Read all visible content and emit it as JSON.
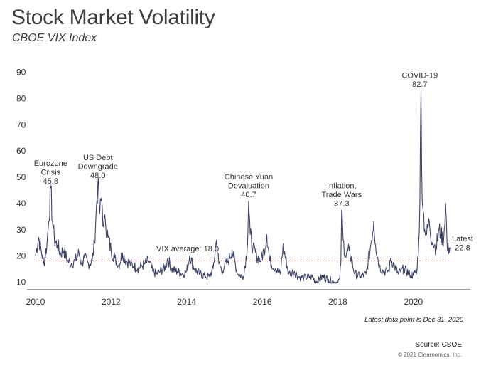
{
  "header": {
    "title": "Stock Market Volatility",
    "subtitle": "CBOE VIX Index"
  },
  "footer": {
    "note": "Latest data point is Dec 31, 2020",
    "source": "Source: CBOE",
    "copyright": "© 2021 Clearnomics, Inc."
  },
  "colors": {
    "line": "#3f4467",
    "average": "#d9534f",
    "axis": "#333333",
    "text": "#333333"
  },
  "chart_data": {
    "type": "line",
    "title": "Stock Market Volatility",
    "subtitle": "CBOE VIX Index",
    "xlabel": "",
    "ylabel": "",
    "xlim": [
      2010.0,
      2021.0
    ],
    "ylim": [
      10,
      90
    ],
    "yticks": [
      10,
      20,
      30,
      40,
      50,
      60,
      70,
      80,
      90
    ],
    "xticks": [
      2010,
      2012,
      2014,
      2016,
      2018,
      2020
    ],
    "grid": false,
    "legend": "none",
    "average": {
      "value": 18.0,
      "label": "VIX average: 18.0"
    },
    "series": [
      {
        "x": [
          2010.0,
          2010.08,
          2010.15,
          2010.22,
          2010.3,
          2010.35,
          2010.4,
          2010.45,
          2010.5,
          2010.58,
          2010.66,
          2010.75,
          2010.85,
          2010.95,
          2011.05,
          2011.15,
          2011.22,
          2011.3,
          2011.4,
          2011.5,
          2011.56,
          2011.6,
          2011.65,
          2011.7,
          2011.75,
          2011.8,
          2011.85,
          2011.92,
          2012.0,
          2012.1,
          2012.2,
          2012.3,
          2012.4,
          2012.5,
          2012.6,
          2012.7,
          2012.8,
          2012.9,
          2013.0,
          2013.1,
          2013.2,
          2013.3,
          2013.45,
          2013.5,
          2013.6,
          2013.75,
          2013.9,
          2014.0,
          2014.08,
          2014.2,
          2014.35,
          2014.5,
          2014.6,
          2014.7,
          2014.79,
          2014.85,
          2014.95,
          2015.0,
          2015.1,
          2015.2,
          2015.35,
          2015.5,
          2015.6,
          2015.64,
          2015.68,
          2015.75,
          2015.85,
          2015.95,
          2016.05,
          2016.12,
          2016.2,
          2016.35,
          2016.48,
          2016.55,
          2016.7,
          2016.85,
          2016.95,
          2017.1,
          2017.3,
          2017.45,
          2017.6,
          2017.75,
          2017.9,
          2018.0,
          2018.05,
          2018.08,
          2018.1,
          2018.14,
          2018.2,
          2018.3,
          2018.45,
          2018.6,
          2018.75,
          2018.85,
          2018.95,
          2019.0,
          2019.1,
          2019.2,
          2019.35,
          2019.4,
          2019.5,
          2019.6,
          2019.75,
          2019.9,
          2020.0,
          2020.1,
          2020.14,
          2020.17,
          2020.2,
          2020.22,
          2020.26,
          2020.3,
          2020.35,
          2020.42,
          2020.5,
          2020.55,
          2020.6,
          2020.68,
          2020.72,
          2020.8,
          2020.85,
          2020.9,
          2020.95,
          2021.0
        ],
        "values": [
          20,
          27,
          22,
          17,
          24,
          33,
          45.8,
          33,
          26,
          24,
          21,
          22,
          18,
          17,
          18,
          21,
          17,
          19,
          17,
          18,
          25,
          35,
          48.0,
          36,
          42,
          31,
          33,
          27,
          22,
          19,
          16,
          21,
          18,
          17,
          16,
          15,
          16,
          17,
          18,
          14,
          13,
          14,
          16,
          19,
          15,
          14,
          13,
          14,
          20,
          15,
          13,
          12,
          12,
          15,
          26,
          17,
          14,
          16,
          18,
          22,
          13,
          12,
          22,
          40.7,
          28,
          23,
          20,
          18,
          22,
          28,
          18,
          15,
          13,
          24,
          13,
          14,
          12,
          11.5,
          12,
          10,
          12,
          11,
          10,
          9.8,
          11,
          17,
          37.3,
          26,
          20,
          22,
          13,
          12,
          13,
          22,
          33,
          24,
          16,
          14,
          14,
          19,
          16,
          13,
          15,
          13,
          12.5,
          15,
          25,
          40,
          82.7,
          52,
          37,
          30,
          28,
          33,
          25,
          24,
          23,
          30,
          28,
          26,
          40,
          22,
          23,
          22.8
        ]
      }
    ],
    "annotations": [
      {
        "text": "Eurozone",
        "text2": "Crisis",
        "value": "45.8",
        "x": 2010.4,
        "y": 45.8
      },
      {
        "text": "US Debt",
        "text2": "Downgrade",
        "value": "48.0",
        "x": 2011.65,
        "y": 48.0
      },
      {
        "text": "Chinese Yuan",
        "text2": "Devaluation",
        "value": "40.7",
        "x": 2015.64,
        "y": 40.7
      },
      {
        "text": "Inflation,",
        "text2": "Trade Wars",
        "value": "37.3",
        "x": 2018.1,
        "y": 37.3
      },
      {
        "text": "COVID-19",
        "text2": "",
        "value": "82.7",
        "x": 2020.17,
        "y": 82.7
      },
      {
        "text": "Latest",
        "text2": "",
        "value": "22.8",
        "x": 2021.0,
        "y": 22.8
      }
    ]
  }
}
